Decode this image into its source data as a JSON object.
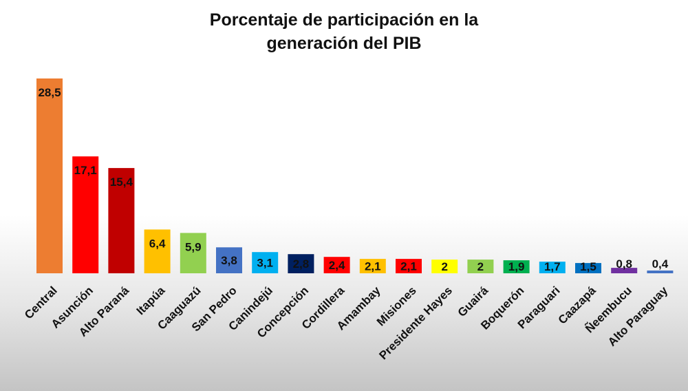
{
  "chart_data": {
    "type": "bar",
    "title_lines": [
      "Porcentaje de participación en la",
      "generación del PIB"
    ],
    "xlabel": "",
    "ylabel": "",
    "ylim": [
      0,
      28.5
    ],
    "grid": false,
    "legend": "none",
    "categories": [
      "Central",
      "Asunción",
      "Alto Paraná",
      "Itapúa",
      "Caaguazú",
      "San Pedro",
      "Canindejú",
      "Concepción",
      "Cordillera",
      "Amambay",
      "Misiones",
      "Presidente Hayes",
      "Guairá",
      "Boquerón",
      "Paraguari",
      "Caazapá",
      "Ñeembucu",
      "Alto Paraguay"
    ],
    "values": [
      28.5,
      17.1,
      15.4,
      6.4,
      5.9,
      3.8,
      3.1,
      2.8,
      2.4,
      2.1,
      2.1,
      2,
      2,
      1.9,
      1.7,
      1.5,
      0.8,
      0.4
    ],
    "value_labels": [
      "28,5",
      "17,1",
      "15,4",
      "6,4",
      "5,9",
      "3,8",
      "3,1",
      "2,8",
      "2,4",
      "2,1",
      "2,1",
      "2",
      "2",
      "1,9",
      "1,7",
      "1,5",
      "0,8",
      "0,4"
    ],
    "colors": [
      "#ED7D31",
      "#FF0000",
      "#C00000",
      "#FFC000",
      "#92D050",
      "#4472C4",
      "#00B0F0",
      "#002060",
      "#FF0000",
      "#FFC000",
      "#FF0000",
      "#FFFF00",
      "#92D050",
      "#00B050",
      "#00B0F0",
      "#0070C0",
      "#7030A0",
      "#4472C4"
    ]
  }
}
